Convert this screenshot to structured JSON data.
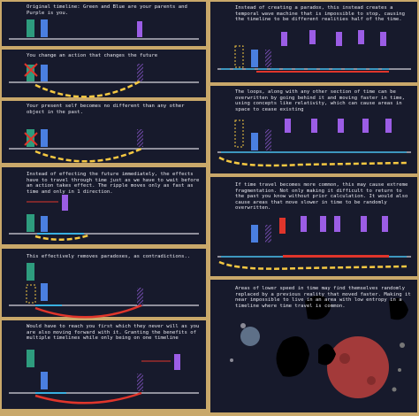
{
  "panels_left": [
    {
      "text": "Original timeline: Green and Blue are your parents and Purple is you."
    },
    {
      "text": "You change an action that changes the future"
    },
    {
      "text": "Your present self becomes no different than any other object in the past."
    },
    {
      "text": "Instead of effecting the future immediately, the effects have to travel through time just as we have to wait before an action takes effect. The ripple moves only as fast as time and only in 1 direction."
    },
    {
      "text": "This effectively removes paradoxes, as contradictions.."
    },
    {
      "text": "Would have to reach you first which they never will as you are also moving forward with it. Granting the benefits of multiple timelines while only being on one timeline"
    }
  ],
  "panels_right": [
    {
      "text": "Instead of creating a paradox, this instead creates a temporal wave machine that is impossible to stop, causing the timeline to be different realities half of the time."
    },
    {
      "text": "The loops, along with any other section of time can be overwritten by going behind it and moving faster in time, using concepts like relativity, which can cause areas in space to cease existing"
    },
    {
      "text": "If time travel becomes more common, this may cause extreme fragmentation. Not only making it difficult to return to the past you know without prior calculation. It would also cause areas that move slower in time to be randomly overwritten."
    },
    {
      "text": "Areas of lower speed in time may find themselves randomly replaced by a previous reality that moved faster. Making it near impossible to live in an area with low entropy in a timeline where time travel is common."
    }
  ]
}
